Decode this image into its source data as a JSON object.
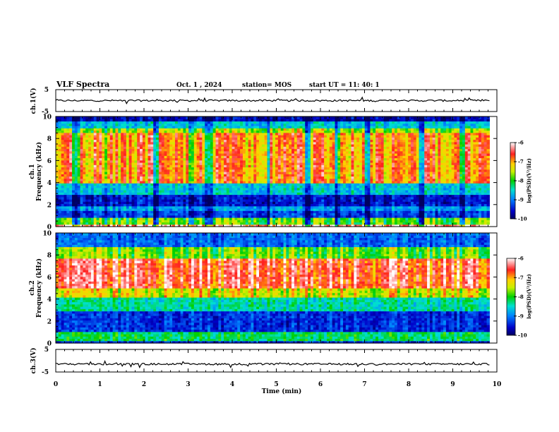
{
  "header": {
    "title": "VLF Spectra",
    "date": "Oct. 1 , 2024",
    "station": "station= MOS",
    "start_ut": "start UT =  11: 40: 1"
  },
  "chart_data": [
    {
      "type": "line",
      "panel": "ch.1 waveform",
      "ylabel": "ch.1(V)",
      "ylim": [
        -5,
        5
      ],
      "yticks": [
        "5",
        "-5"
      ],
      "xlim": [
        0,
        10
      ],
      "baseline": 0,
      "color": "#000000"
    },
    {
      "type": "heatmap",
      "panel": "ch.1 spectrogram",
      "ylabel": "ch.1 Frequency (kHz)",
      "ylim": [
        0,
        10
      ],
      "yticks": [
        "0",
        "2",
        "4",
        "6",
        "8",
        "10"
      ],
      "xlim": [
        0,
        10
      ],
      "data_end_min": 9.83,
      "colorbar": {
        "label": "log(PSD)(V²/Hz)",
        "range": [
          -10,
          -6
        ],
        "ticks": [
          "-6",
          "-7",
          "-8",
          "-9",
          "-10"
        ]
      },
      "bands": [
        {
          "f_lo": 0.0,
          "f_hi": 0.3,
          "level": 0.95
        },
        {
          "f_lo": 0.3,
          "f_hi": 0.9,
          "level": 0.55
        },
        {
          "f_lo": 0.9,
          "f_hi": 1.4,
          "level": 0.18
        },
        {
          "f_lo": 1.4,
          "f_hi": 1.9,
          "level": 0.3
        },
        {
          "f_lo": 1.9,
          "f_hi": 3.0,
          "level": 0.12
        },
        {
          "f_lo": 3.0,
          "f_hi": 4.0,
          "level": 0.35
        },
        {
          "f_lo": 4.0,
          "f_hi": 8.6,
          "level": 0.78
        },
        {
          "f_lo": 8.6,
          "f_hi": 9.0,
          "level": 0.6
        },
        {
          "f_lo": 9.0,
          "f_hi": 9.6,
          "level": 0.35
        },
        {
          "f_lo": 9.6,
          "f_hi": 10.0,
          "level": 0.08
        }
      ],
      "quiet_intervals_min": [
        [
          0.35,
          0.5
        ],
        [
          1.05,
          1.15
        ],
        [
          2.2,
          2.3
        ],
        [
          3.0,
          3.1
        ],
        [
          3.35,
          3.55
        ],
        [
          4.75,
          4.85
        ],
        [
          5.6,
          5.75
        ],
        [
          6.3,
          6.4
        ],
        [
          7.0,
          7.1
        ],
        [
          8.2,
          8.3
        ],
        [
          9.1,
          9.25
        ]
      ]
    },
    {
      "type": "heatmap",
      "panel": "ch.2 spectrogram",
      "ylabel": "ch.2 Frequency (kHz)",
      "ylim": [
        0,
        10
      ],
      "yticks": [
        "0",
        "2",
        "4",
        "6",
        "8",
        "10"
      ],
      "xlim": [
        0,
        10
      ],
      "data_end_min": 9.83,
      "colorbar": {
        "label": "log(PSD)(V²/Hz)",
        "range": [
          -10,
          -6
        ],
        "ticks": [
          "-6",
          "-7",
          "-8",
          "-9",
          "-10"
        ]
      },
      "bands": [
        {
          "f_lo": 0.0,
          "f_hi": 0.3,
          "level": 0.15
        },
        {
          "f_lo": 0.3,
          "f_hi": 1.0,
          "level": 0.45
        },
        {
          "f_lo": 1.0,
          "f_hi": 3.0,
          "level": 0.15
        },
        {
          "f_lo": 3.0,
          "f_hi": 4.2,
          "level": 0.4
        },
        {
          "f_lo": 4.2,
          "f_hi": 5.0,
          "level": 0.65
        },
        {
          "f_lo": 5.0,
          "f_hi": 7.8,
          "level": 0.86
        },
        {
          "f_lo": 7.8,
          "f_hi": 8.8,
          "level": 0.55
        },
        {
          "f_lo": 8.8,
          "f_hi": 10.0,
          "level": 0.22
        }
      ],
      "quiet_intervals_min": []
    },
    {
      "type": "line",
      "panel": "ch.3 waveform",
      "ylabel": "ch.3(V)",
      "ylim": [
        -5,
        5
      ],
      "yticks": [
        "5",
        "-5"
      ],
      "xlim": [
        0,
        10
      ],
      "baseline": -1.5,
      "color": "#000000"
    }
  ],
  "xaxis": {
    "label": "Time (min)",
    "ticks": [
      "0",
      "1",
      "2",
      "3",
      "4",
      "5",
      "6",
      "7",
      "8",
      "9",
      "10"
    ]
  }
}
